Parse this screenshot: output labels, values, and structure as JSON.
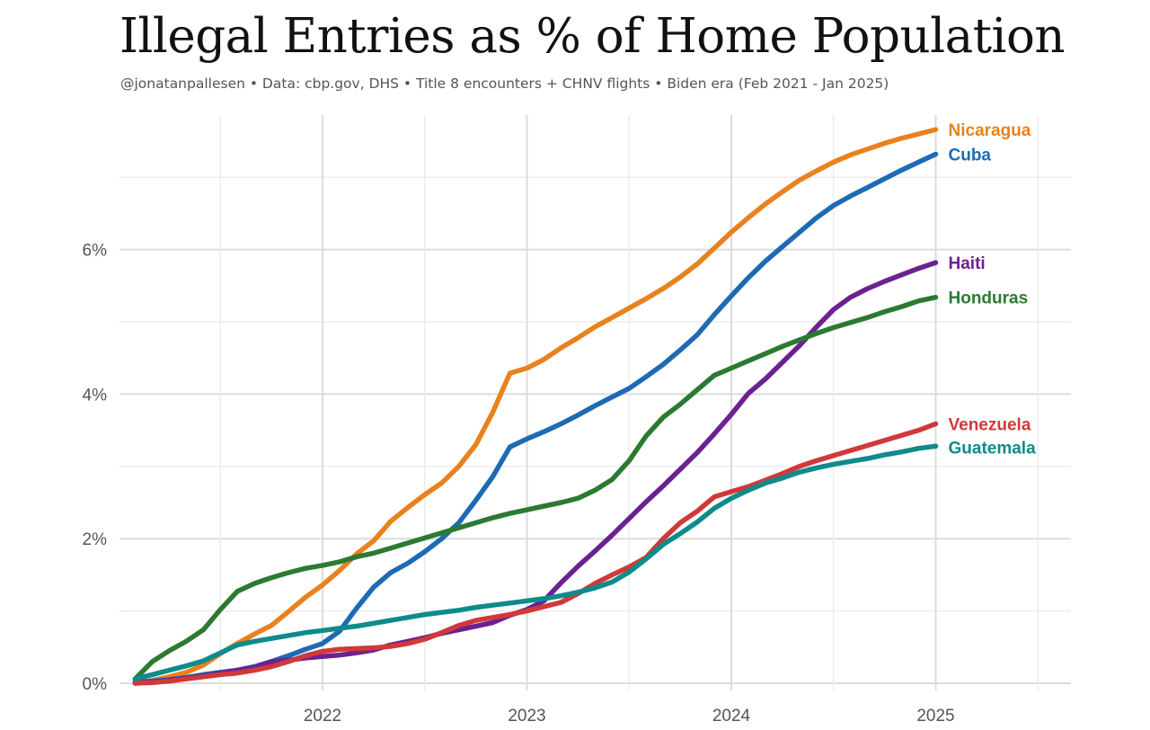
{
  "title": "Illegal Entries as % of Home Population",
  "subtitle": "@jonatanpallesen  •  Data: cbp.gov, DHS  •  Title 8 encounters + CHNV flights  •  Biden era (Feb 2021 - Jan 2025)",
  "chart_data": {
    "type": "line",
    "title": "Illegal Entries as % of Home Population",
    "xlabel": "",
    "ylabel": "",
    "x_ticks": [
      2022,
      2023,
      2024,
      2025
    ],
    "x_tick_labels": [
      "2022",
      "2023",
      "2024",
      "2025"
    ],
    "y_ticks": [
      0,
      2,
      4,
      6
    ],
    "y_tick_labels": [
      "0%",
      "2%",
      "4%",
      "6%"
    ],
    "xlim": [
      2021.0,
      2025.5
    ],
    "ylim": [
      0,
      7.9
    ],
    "grid": true,
    "legend": "direct labels at line ends (right)",
    "x": [
      2021.083,
      2021.167,
      2021.25,
      2021.333,
      2021.417,
      2021.5,
      2021.583,
      2021.667,
      2021.75,
      2021.833,
      2021.917,
      2022.0,
      2022.083,
      2022.167,
      2022.25,
      2022.333,
      2022.417,
      2022.5,
      2022.583,
      2022.667,
      2022.75,
      2022.833,
      2022.917,
      2023.0,
      2023.083,
      2023.167,
      2023.25,
      2023.333,
      2023.417,
      2023.5,
      2023.583,
      2023.667,
      2023.75,
      2023.833,
      2023.917,
      2024.0,
      2024.083,
      2024.167,
      2024.25,
      2024.333,
      2024.417,
      2024.5,
      2024.583,
      2024.667,
      2024.75,
      2024.833,
      2024.917,
      2025.0
    ],
    "series": [
      {
        "name": "Nicaragua",
        "color": "#e8821e",
        "values": [
          0.0,
          0.04,
          0.09,
          0.15,
          0.25,
          0.41,
          0.55,
          0.68,
          0.8,
          0.99,
          1.19,
          1.36,
          1.56,
          1.79,
          1.97,
          2.24,
          2.43,
          2.61,
          2.77,
          3.0,
          3.3,
          3.75,
          4.29,
          4.36,
          4.48,
          4.64,
          4.78,
          4.93,
          5.06,
          5.19,
          5.32,
          5.46,
          5.62,
          5.8,
          6.02,
          6.24,
          6.44,
          6.63,
          6.8,
          6.96,
          7.09,
          7.21,
          7.31,
          7.39,
          7.47,
          7.54,
          7.6,
          7.66
        ]
      },
      {
        "name": "Cuba",
        "color": "#1e6ab3",
        "values": [
          0.02,
          0.03,
          0.05,
          0.08,
          0.12,
          0.15,
          0.18,
          0.23,
          0.3,
          0.38,
          0.47,
          0.55,
          0.72,
          1.04,
          1.33,
          1.53,
          1.66,
          1.82,
          2.0,
          2.22,
          2.53,
          2.86,
          3.27,
          3.38,
          3.48,
          3.59,
          3.71,
          3.84,
          3.96,
          4.08,
          4.24,
          4.41,
          4.61,
          4.82,
          5.1,
          5.36,
          5.61,
          5.84,
          6.04,
          6.24,
          6.44,
          6.61,
          6.74,
          6.86,
          6.98,
          7.1,
          7.21,
          7.32
        ]
      },
      {
        "name": "Haiti",
        "color": "#6b2290",
        "values": [
          0.0,
          0.02,
          0.04,
          0.07,
          0.1,
          0.14,
          0.18,
          0.22,
          0.3,
          0.32,
          0.35,
          0.37,
          0.39,
          0.42,
          0.46,
          0.53,
          0.58,
          0.63,
          0.69,
          0.74,
          0.79,
          0.84,
          0.94,
          1.02,
          1.14,
          1.39,
          1.62,
          1.83,
          2.05,
          2.28,
          2.51,
          2.73,
          2.96,
          3.19,
          3.45,
          3.72,
          4.01,
          4.21,
          4.44,
          4.67,
          4.93,
          5.17,
          5.34,
          5.46,
          5.56,
          5.65,
          5.74,
          5.82
        ]
      },
      {
        "name": "Honduras",
        "color": "#2c7a32",
        "values": [
          0.06,
          0.3,
          0.45,
          0.58,
          0.74,
          1.02,
          1.27,
          1.38,
          1.46,
          1.53,
          1.59,
          1.63,
          1.68,
          1.75,
          1.8,
          1.87,
          1.94,
          2.01,
          2.08,
          2.15,
          2.22,
          2.29,
          2.35,
          2.4,
          2.45,
          2.5,
          2.56,
          2.67,
          2.82,
          3.08,
          3.42,
          3.68,
          3.86,
          4.06,
          4.26,
          4.36,
          4.46,
          4.56,
          4.66,
          4.75,
          4.84,
          4.92,
          4.99,
          5.06,
          5.14,
          5.21,
          5.29,
          5.34
        ]
      },
      {
        "name": "Venezuela",
        "color": "#d0393a",
        "values": [
          0.0,
          0.01,
          0.03,
          0.06,
          0.09,
          0.12,
          0.14,
          0.18,
          0.23,
          0.3,
          0.38,
          0.44,
          0.47,
          0.48,
          0.49,
          0.51,
          0.55,
          0.61,
          0.7,
          0.8,
          0.87,
          0.91,
          0.95,
          1.0,
          1.06,
          1.12,
          1.24,
          1.38,
          1.5,
          1.61,
          1.74,
          2.0,
          2.22,
          2.38,
          2.58,
          2.65,
          2.72,
          2.81,
          2.9,
          3.0,
          3.08,
          3.15,
          3.22,
          3.29,
          3.36,
          3.43,
          3.5,
          3.59
        ]
      },
      {
        "name": "Guatemala",
        "color": "#0e8b8b",
        "values": [
          0.06,
          0.12,
          0.18,
          0.24,
          0.31,
          0.42,
          0.53,
          0.58,
          0.62,
          0.66,
          0.7,
          0.73,
          0.76,
          0.79,
          0.83,
          0.87,
          0.91,
          0.95,
          0.98,
          1.01,
          1.05,
          1.08,
          1.11,
          1.14,
          1.17,
          1.21,
          1.26,
          1.32,
          1.4,
          1.54,
          1.72,
          1.92,
          2.07,
          2.23,
          2.42,
          2.56,
          2.67,
          2.77,
          2.84,
          2.92,
          2.98,
          3.03,
          3.07,
          3.11,
          3.16,
          3.2,
          3.25,
          3.28
        ]
      }
    ]
  }
}
